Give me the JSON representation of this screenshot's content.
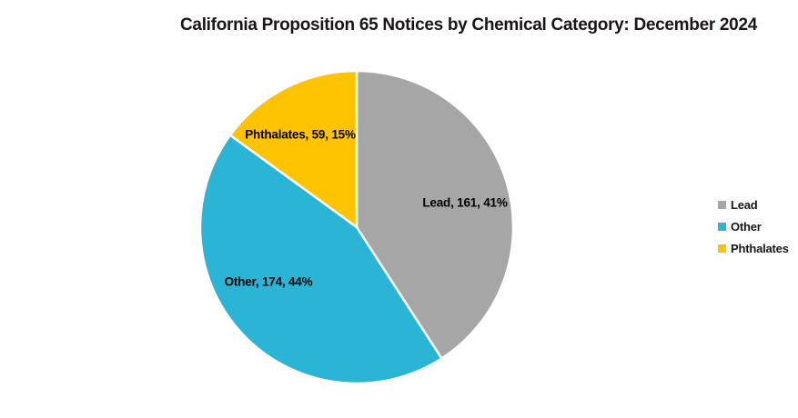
{
  "chart_data": {
    "type": "pie",
    "title": "California Proposition 65 Notices by Chemical Category: December 2024",
    "categories": [
      "Lead",
      "Other",
      "Phthalates"
    ],
    "values": [
      161,
      174,
      59
    ],
    "percents": [
      41,
      44,
      15
    ],
    "colors": [
      "#A6A6A6",
      "#2AB4D6",
      "#FFC300"
    ],
    "slice_border_color": "#FFFFFF",
    "label_color": "#000000",
    "title_color": "#1D1418",
    "start_angle_deg": 0,
    "direction": "clockwise",
    "legend_position": "right",
    "slice_labels": [
      "Lead, 161, 41%",
      "Other, 174, 44%",
      "Phthalates, 59, 15%"
    ]
  }
}
